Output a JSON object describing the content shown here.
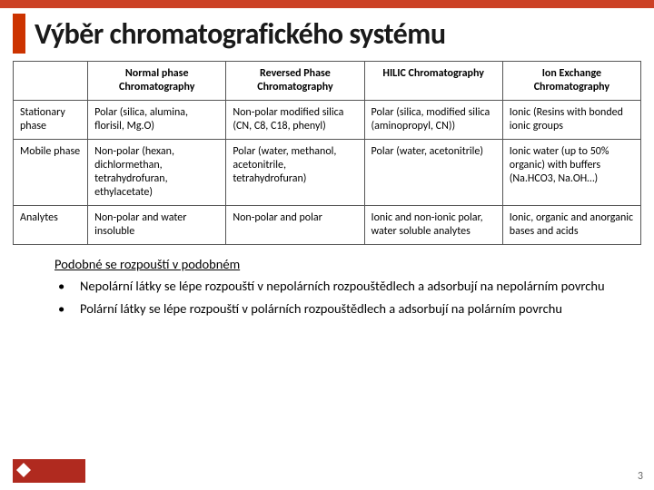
{
  "title": "Výběr chromatografického systému",
  "table": {
    "columns": [
      "Normal phase Chromatography",
      "Reversed Phase Chromatography",
      "HILIC Chromatography",
      "Ion Exchange Chromatography"
    ],
    "rows": [
      {
        "head": "Stationary phase",
        "cells": [
          "Polar (silica, alumina, florisil, Mg.O)",
          "Non-polar modified silica (CN, C8, C18, phenyl)",
          "Polar (silica, modified silica (aminopropyl, CN))",
          "Ionic (Resins with bonded ionic groups"
        ]
      },
      {
        "head": "Mobile phase",
        "cells": [
          "Non-polar (hexan, dichlormethan, tetrahydrofuran, ethylacetate)",
          "Polar (water, methanol, acetonitrile, tetrahydrofuran)",
          "Polar (water, acetonitrile)",
          "Ionic water (up to 50% organic) with buffers (Na.HCO3, Na.OH…)"
        ]
      },
      {
        "head": "Analytes",
        "cells": [
          "Non-polar and water insoluble",
          "Non-polar and polar",
          "Ionic and non-ionic polar, water soluble analytes",
          "Ionic, organic and anorganic bases and acids"
        ]
      }
    ]
  },
  "notes": {
    "lead": "Podobné se rozpouští v podobném",
    "bullets": [
      "Nepolární látky se lépe rozpouští v nepolárních rozpouštědlech a adsorbují na nepolárním povrchu",
      "Polární látky se lépe rozpouští v polárních rozpouštědlech a adsorbují na polárním povrchu"
    ]
  },
  "page_number": "3"
}
